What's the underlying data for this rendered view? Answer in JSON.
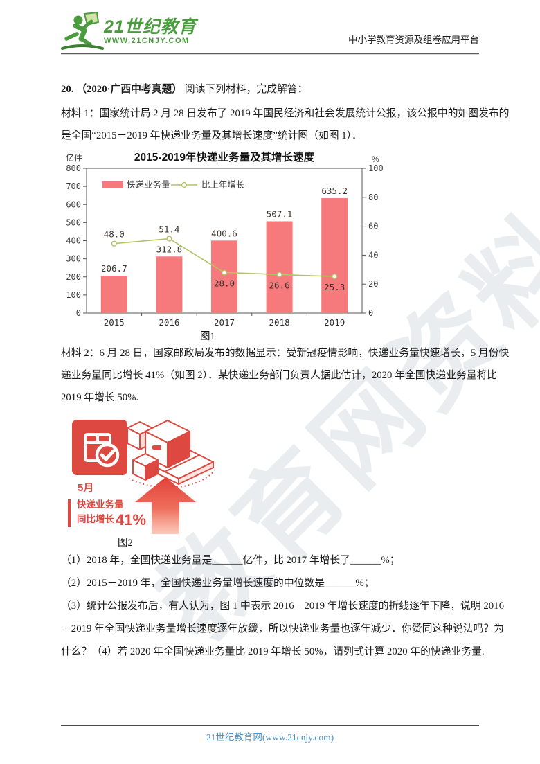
{
  "header": {
    "logo": {
      "brand": "21世纪教育",
      "url": "WWW.21CNJY.COM",
      "icon": "runner-icon",
      "color": "#4b9c3f"
    },
    "platform_text": "中小学教育资源及组卷应用平台"
  },
  "watermark": {
    "text": "教育网资料"
  },
  "question": {
    "number": "20.",
    "source": "（2020·广西中考真题）",
    "prompt": "阅读下列材料，完成解答：",
    "material1_lines": [
      "材料 1：国家统计局 2 月 28 日发布了 2019 年国民经济和社会发展统计公报，该公报中的如图发布的",
      "是全国“2015－2019 年快递业务量及其增长速度”统计图（如图 1）．"
    ],
    "fig1_caption": "图1",
    "material2_lines": [
      "材料 2：6 月 28 日，国家邮政局发布的数据显示：受新冠疫情影响，快递业务量快速增长，5 月份快",
      "递业务量同比增长 41%（如图 2）．某快递业务部门负责人据此估计，2020 年全国快递业务量将比",
      "2019 年增长 50%."
    ],
    "fig2_caption": "图2",
    "parts_lines": [
      "（1）2018 年，全国快递业务量是______亿件，比 2017 年增长了______%；",
      "（2）2015－2019 年，全国快递业务量增长速度的中位数是______%；",
      "（3）统计公报发布后，有人认为，图 1 中表示 2016－2019 年增长速度的折线逐年下降，说明 2016",
      "－2019 年全国快递业务量增长速度逐年放缓，所以快递业务量也逐年减少．你赞同这种说法吗？为",
      "什么？（4）若 2020 年全国快递业务量比 2019 年增长 50%，请列式计算 2020 年的快递业务量."
    ]
  },
  "chart_data": {
    "type": "bar",
    "title": "2015-2019年快递业务量及其增长速度",
    "categories": [
      "2015",
      "2016",
      "2017",
      "2018",
      "2019"
    ],
    "series": [
      {
        "name": "快递业务量",
        "type": "bar",
        "axis": "left",
        "unit": "亿件",
        "color": "#f6797b",
        "values": [
          206.7,
          312.8,
          400.6,
          507.1,
          635.2
        ]
      },
      {
        "name": "比上年增长",
        "type": "line",
        "axis": "right",
        "unit": "%",
        "color": "#b2c463",
        "values": [
          48.0,
          51.4,
          28.0,
          26.6,
          25.3
        ]
      }
    ],
    "left_axis": {
      "label": "亿件",
      "min": 0,
      "max": 800,
      "tick_step": 100
    },
    "right_axis": {
      "label": "%",
      "min": 0,
      "max": 100,
      "tick_step": 20
    },
    "legend_position": "top-left-inside",
    "grid": false,
    "caption": "图1"
  },
  "figure2": {
    "badge_icon": "package-check-icon",
    "art_icons": [
      "parcel-stack-icon",
      "up-arrow-icon"
    ],
    "month_label": "5月",
    "growth_label_line1": "快递业务量",
    "growth_label_line2": "同比增长",
    "growth_value": "41%",
    "accent_color": "#dd4840"
  },
  "footer": {
    "site_text": "21世纪教育网(www.21cnjy.com)"
  }
}
